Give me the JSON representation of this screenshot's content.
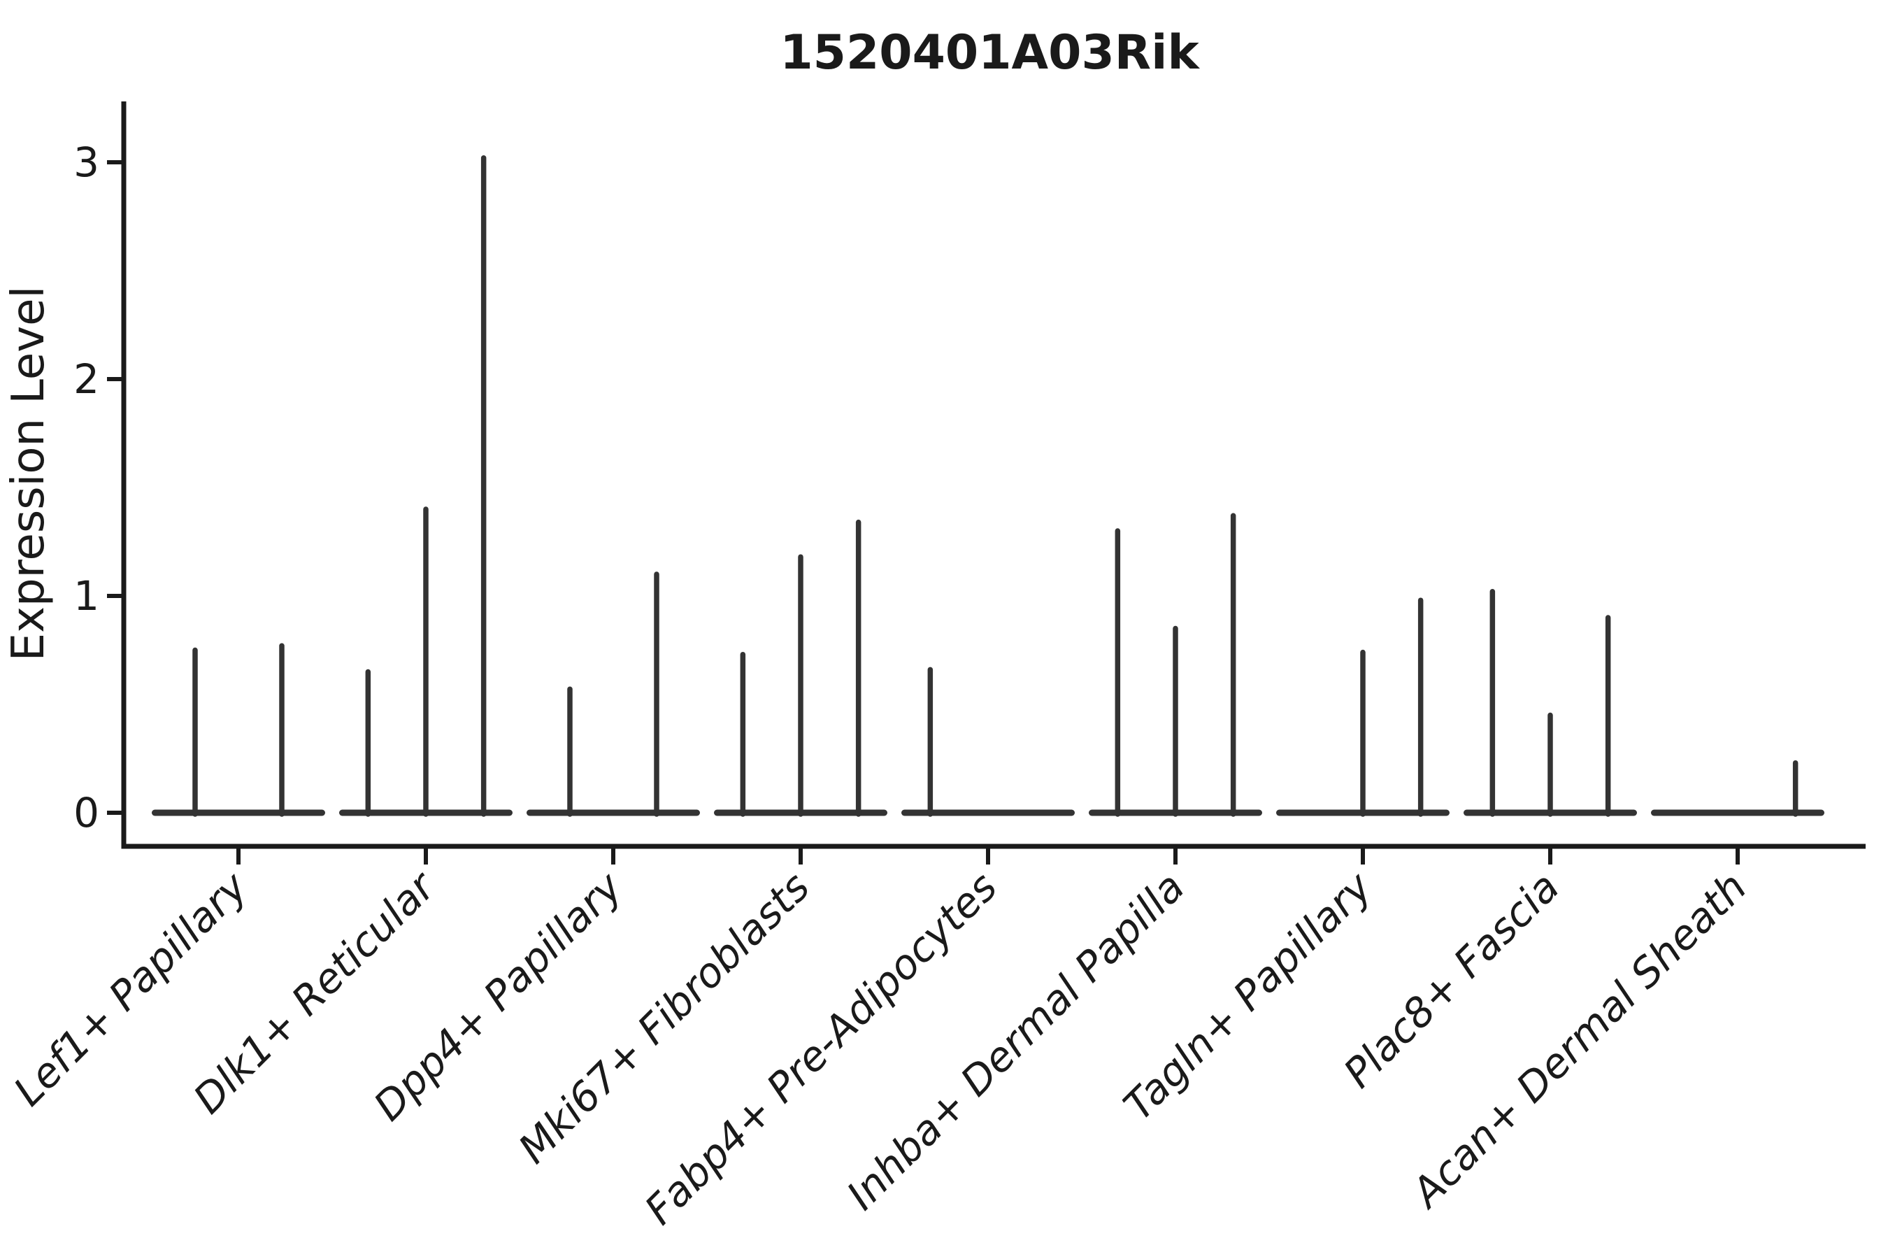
{
  "chart_data": {
    "type": "violin",
    "title": "1520401A03Rik",
    "ylabel": "Expression Level",
    "xlabel": "",
    "yticks": [
      0,
      1,
      2,
      3
    ],
    "ylim": [
      -0.15,
      3.28
    ],
    "grid": false,
    "legend": null,
    "description": "Thin violin plots of gene expression per cell-type cluster; each category shows 2-3 sub-violins collapsed to a flat bar at 0 with a thin spike up to the max expression value. A max of 0 means a flat violin with no spike.",
    "categories": [
      "Lef1+ Papillary",
      "Dlk1+ Reticular",
      "Dpp4+ Papillary",
      "Mki67+ Fibroblasts",
      "Fabp4+ Pre-Adipocytes",
      "Inhba+ Dermal Papilla",
      "Tagln+ Papillary",
      "Plac8+ Fascia",
      "Acan+ Dermal Sheath"
    ],
    "groups": [
      {
        "label": "Lef1+ Papillary",
        "violin_max": [
          0.75,
          0.77
        ]
      },
      {
        "label": "Dlk1+ Reticular",
        "violin_max": [
          0.65,
          1.4,
          3.02
        ]
      },
      {
        "label": "Dpp4+ Papillary",
        "violin_max": [
          0.57,
          1.1
        ]
      },
      {
        "label": "Mki67+ Fibroblasts",
        "violin_max": [
          0.73,
          1.18,
          1.34
        ]
      },
      {
        "label": "Fabp4+ Pre-Adipocytes",
        "violin_max": [
          0.66,
          0,
          0
        ]
      },
      {
        "label": "Inhba+ Dermal Papilla",
        "violin_max": [
          1.3,
          0.85,
          1.37
        ]
      },
      {
        "label": "Tagln+ Papillary",
        "violin_max": [
          0,
          0.74,
          0.98
        ]
      },
      {
        "label": "Plac8+ Fascia",
        "violin_max": [
          1.02,
          0.45,
          0.9
        ]
      },
      {
        "label": "Acan+ Dermal Sheath",
        "violin_max": [
          0,
          0,
          0.23
        ]
      }
    ]
  },
  "colors": {
    "ink": "#1a1a1a",
    "violin": "#333333",
    "background": "#ffffff"
  }
}
